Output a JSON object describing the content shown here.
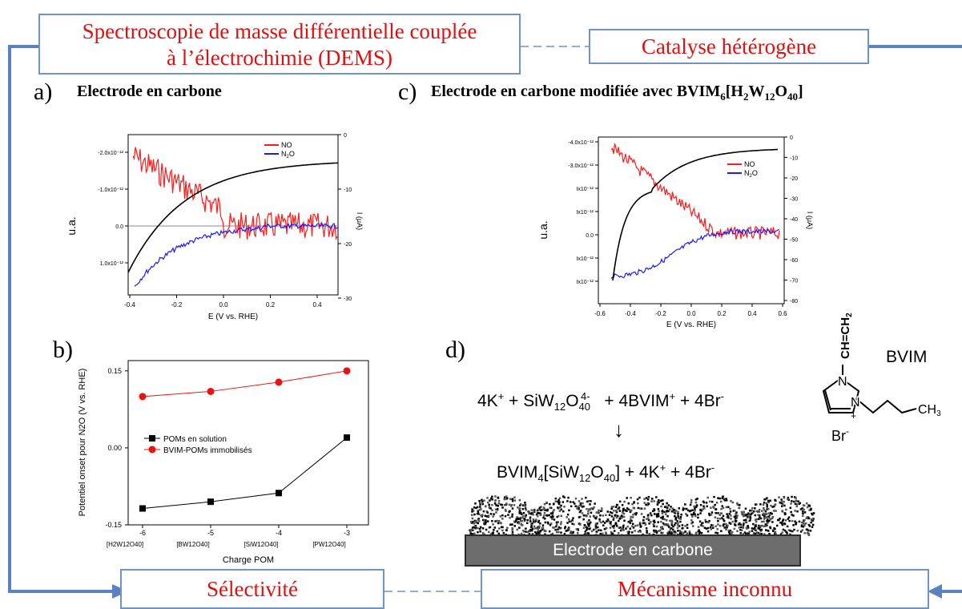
{
  "boxes": {
    "dems_line1": "Spectroscopie de masse différentielle couplée",
    "dems_line2": "à l’électrochimie (DEMS)",
    "catalyse": "Catalyse hétérogène",
    "selectivite": "Sélectivité",
    "mecanisme": "Mécanisme inconnu"
  },
  "panels": {
    "a": {
      "letter": "a)",
      "title": "Electrode en carbone"
    },
    "b": {
      "letter": "b)"
    },
    "c": {
      "letter": "c)",
      "title_main": "Electrode en carbone modifiée avec BVIM",
      "title_sub": "6",
      "title_rest": "[H",
      "title_sub2": "2",
      "title_rest2": "W",
      "title_sub3": "12",
      "title_rest3": "O",
      "title_sub4": "40",
      "title_end": "]"
    },
    "d": {
      "letter": "d)"
    }
  },
  "chart_data": [
    {
      "type": "line",
      "id": "a",
      "xlabel": "E (V vs. RHE)",
      "ylabel": "u.a.",
      "y2label": "I (μA)",
      "xticks": [
        "-0.4",
        "-0.2",
        "0.0",
        "0.2",
        "0.4"
      ],
      "yticks": [
        "-2.0x10⁻¹²",
        "-1.0x10⁻¹²",
        "0.0",
        "1.0x10⁻¹²"
      ],
      "y2ticks": [
        "0",
        "-10",
        "-20",
        "-30"
      ],
      "xlim": [
        -0.42,
        0.47
      ],
      "series": [
        {
          "name": "NO",
          "color": "#ff1a1a"
        },
        {
          "name": "N2O",
          "label_main": "N",
          "label_sub": "2",
          "label_end": "O",
          "color": "#1a1aff"
        },
        {
          "color": "#000000"
        }
      ]
    },
    {
      "type": "line",
      "id": "c",
      "xlabel": "E (V vs. RHE)",
      "ylabel": "u.a.",
      "y2label": "I (μA)",
      "xticks": [
        "-0.6",
        "-0.4",
        "-0.2",
        "0.0",
        "0.2",
        "0.4",
        "0.6"
      ],
      "yticks": [
        "-4.0x10⁻¹²",
        "-3.0x10⁻¹²",
        "Ix10⁻¹²",
        "Ix10⁻¹²",
        "0.0",
        "Ix10⁻¹²",
        "Ix10⁻¹²"
      ],
      "y2ticks": [
        "0",
        "-10",
        "-20",
        "-30",
        "-40",
        "-50",
        "-60",
        "-70",
        "-80"
      ],
      "xlim": [
        -0.6,
        0.6
      ],
      "series": [
        {
          "name": "NO",
          "color": "#ff1a1a"
        },
        {
          "name": "N2O",
          "label_main": "N",
          "label_sub": "2",
          "label_end": "O",
          "color": "#1a1aff"
        },
        {
          "color": "#000000"
        }
      ]
    },
    {
      "type": "line",
      "id": "b",
      "xlabel": "Charge POM",
      "ylabel": "Potentiel onset pour N2O (V vs. RHE)",
      "categories": [
        "-6",
        "-5",
        "-4",
        "-3"
      ],
      "category_labels": [
        "[H2W12O40]",
        "[BW12O40]",
        "[SiW12O40]",
        "[PW12O40]"
      ],
      "yticks": [
        "0.15",
        "0.00",
        "-0.15"
      ],
      "ylim": [
        -0.15,
        0.17
      ],
      "series": [
        {
          "name": "POMs en solution",
          "color": "#000000",
          "values": [
            -0.118,
            -0.105,
            -0.088,
            0.02
          ]
        },
        {
          "name": "BVIM-POMs immobilisés",
          "color": "#ee1111",
          "values": [
            0.1,
            0.11,
            0.128,
            0.15
          ]
        }
      ]
    }
  ],
  "scheme": {
    "eq1": {
      "a": "4K",
      "b": "+",
      "c": " + SiW",
      "d": "12",
      "e": "O",
      "f": "40",
      "g": "4-",
      "h": " + 4BVIM",
      "i": "+",
      "j": " + 4Br",
      "k": "-"
    },
    "eq2": {
      "a": "BVIM",
      "b": "4",
      "c": "[SiW",
      "d": "12",
      "e": "O",
      "f": "40",
      "g": "] + 4K",
      "h": "+",
      "i": " + 4Br",
      "j": "-"
    },
    "arrow": "↓",
    "electrode": "Electrode en carbone",
    "bvim_label": "BVIM",
    "struct": {
      "vinyl": "CH=CH",
      "vinyl_sub": "2",
      "n1": "N",
      "n2": "N",
      "plus": "+",
      "ch3": "CH",
      "ch3_sub": "3",
      "br": "Br",
      "br_sup": "-"
    }
  }
}
